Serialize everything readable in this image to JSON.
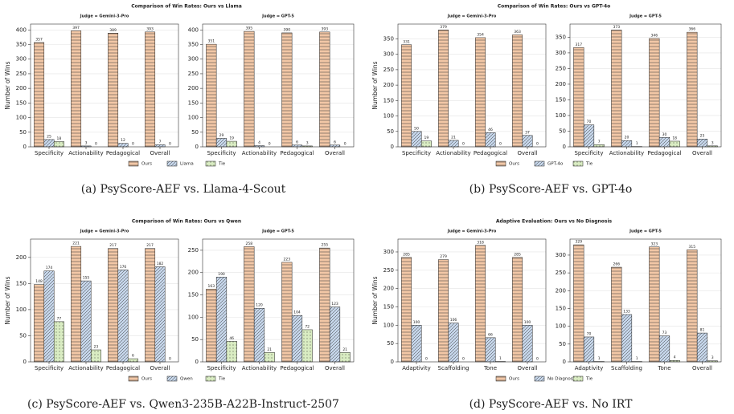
{
  "chart_data": [
    {
      "type": "bar",
      "title": "Comparison of Win Rates: Ours vs Llama",
      "caption": "(a) PsyScore-AEF vs. Llama-4-Scout",
      "ylabel": "Number of Wins",
      "categories": [
        "Specificity",
        "Actionability",
        "Pedagogical",
        "Overall"
      ],
      "series": [
        {
          "name": "Ours",
          "color": "#f2c7a6",
          "hatch": "horizontal"
        },
        {
          "name": "Llama",
          "color": "#c6d6ea",
          "hatch": "diagonal"
        },
        {
          "name": "Tie",
          "color": "#d9ecc2",
          "hatch": "dots"
        }
      ],
      "panels": [
        {
          "subtitle": "Judge = Gemini-3-Pro",
          "ylim": [
            0,
            420
          ],
          "yticks": [
            0,
            50,
            100,
            150,
            200,
            250,
            300,
            350,
            400
          ],
          "values": [
            [
              357,
              397,
              389,
              393
            ],
            [
              25,
              3,
              12,
              7
            ],
            [
              18,
              0,
              0,
              0
            ]
          ]
        },
        {
          "subtitle": "Judge = GPT-5",
          "ylim": [
            0,
            420
          ],
          "yticks": [
            0,
            50,
            100,
            150,
            200,
            250,
            300,
            350,
            400
          ],
          "values": [
            [
              351,
              395,
              390,
              393
            ],
            [
              29,
              4,
              6,
              6
            ],
            [
              19,
              0,
              3,
              0
            ]
          ]
        }
      ]
    },
    {
      "type": "bar",
      "title": "Comparison of Win Rates: Ours vs GPT-4o",
      "caption": "(b) PsyScore-AEF vs. GPT-4o",
      "ylabel": "Number of Wins",
      "categories": [
        "Specificity",
        "Actionability",
        "Pedagogical",
        "Overall"
      ],
      "series": [
        {
          "name": "Ours",
          "color": "#f2c7a6",
          "hatch": "horizontal"
        },
        {
          "name": "GPT-4o",
          "color": "#c6d6ea",
          "hatch": "diagonal"
        },
        {
          "name": "Tie",
          "color": "#d9ecc2",
          "hatch": "dots"
        }
      ],
      "panels": [
        {
          "subtitle": "Judge = Gemini-3-Pro",
          "ylim": [
            0,
            398
          ],
          "yticks": [
            0,
            50,
            100,
            150,
            200,
            250,
            300,
            350
          ],
          "values": [
            [
              331,
              379,
              354,
              363
            ],
            [
              50,
              21,
              46,
              37
            ],
            [
              19,
              0,
              0,
              0
            ]
          ]
        },
        {
          "subtitle": "Judge = GPT-5",
          "ylim": [
            0,
            392
          ],
          "yticks": [
            0,
            50,
            100,
            150,
            200,
            250,
            300,
            350
          ],
          "values": [
            [
              317,
              373,
              346,
              366
            ],
            [
              70,
              20,
              30,
              25
            ],
            [
              7,
              1,
              18,
              3
            ]
          ]
        }
      ]
    },
    {
      "type": "bar",
      "title": "Comparison of Win Rates: Ours vs Qwen",
      "caption": "(c) PsyScore-AEF vs. Qwen3-235B-A22B-Instruct-2507",
      "ylabel": "Number of Wins",
      "categories": [
        "Specificity",
        "Actionability",
        "Pedagogical",
        "Overall"
      ],
      "series": [
        {
          "name": "Ours",
          "color": "#f2c7a6",
          "hatch": "horizontal"
        },
        {
          "name": "Qwen",
          "color": "#c6d6ea",
          "hatch": "diagonal"
        },
        {
          "name": "Tie",
          "color": "#d9ecc2",
          "hatch": "dots"
        }
      ],
      "panels": [
        {
          "subtitle": "Judge = Gemini-3-Pro",
          "ylim": [
            0,
            235
          ],
          "yticks": [
            0,
            50,
            100,
            150,
            200
          ],
          "values": [
            [
              148,
              221,
              217,
              217
            ],
            [
              174,
              155,
              176,
              182
            ],
            [
              77,
              23,
              6,
              0
            ]
          ]
        },
        {
          "subtitle": "Judge = GPT-5",
          "ylim": [
            0,
            275
          ],
          "yticks": [
            0,
            50,
            100,
            150,
            200,
            250
          ],
          "values": [
            [
              163,
              258,
              223,
              255
            ],
            [
              190,
              120,
              104,
              123
            ],
            [
              46,
              21,
              72,
              21
            ]
          ]
        }
      ]
    },
    {
      "type": "bar",
      "title": "Adaptive Evaluation: Ours vs No Diagnosis",
      "caption": "(d) PsyScore-AEF vs. No IRT",
      "ylabel": "Number of Wins",
      "categories": [
        "Adaptivity",
        "Scaffolding",
        "Tone",
        "Overall"
      ],
      "series": [
        {
          "name": "Ours",
          "color": "#f2c7a6",
          "hatch": "horizontal"
        },
        {
          "name": "No Diagnosis",
          "color": "#c6d6ea",
          "hatch": "diagonal"
        },
        {
          "name": "Tie",
          "color": "#d9ecc2",
          "hatch": "dots"
        }
      ],
      "panels": [
        {
          "subtitle": "Judge = Gemini-3-Pro",
          "ylim": [
            0,
            335
          ],
          "yticks": [
            0,
            50,
            100,
            150,
            200,
            250,
            300
          ],
          "values": [
            [
              285,
              279,
              318,
              285
            ],
            [
              100,
              106,
              66,
              100
            ],
            [
              0,
              0,
              1,
              0
            ]
          ]
        },
        {
          "subtitle": "Judge = GPT-5",
          "ylim": [
            0,
            345
          ],
          "yticks": [
            0,
            50,
            100,
            150,
            200,
            250,
            300
          ],
          "values": [
            [
              329,
              266,
              323,
              315
            ],
            [
              70,
              133,
              73,
              81
            ],
            [
              1,
              1,
              4,
              3
            ]
          ]
        }
      ]
    }
  ]
}
